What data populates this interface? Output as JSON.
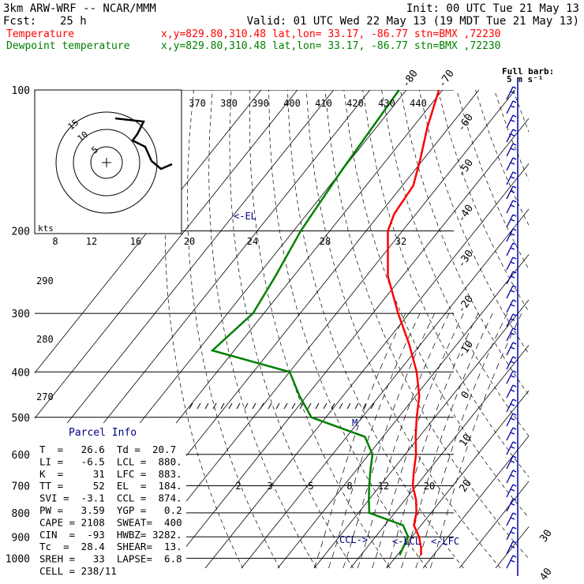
{
  "header": {
    "model": "3km ARW-WRF -- NCAR/MMM",
    "init": "Init: 00 UTC Tue 21 May 13",
    "fcst_label": "Fcst:",
    "fcst_value": "25 h",
    "valid": "Valid: 01 UTC Wed 22 May 13 (19 MDT Tue 21 May 13)",
    "temp_label": "Temperature",
    "dew_label": "Dewpoint temperature",
    "location": "x,y=829.80,310.48   lat,lon= 33.17, -86.77   stn=BMX ,72230",
    "barb_title": "Full barb:",
    "barb_units": "5 m s⁻¹"
  },
  "colors": {
    "temperature": "#ff0000",
    "dewpoint": "#008000",
    "axes": "#000000",
    "parcel_title": "#000080",
    "barbs": "#0000a0"
  },
  "parcel_info": {
    "title": "Parcel Info",
    "rows": [
      "T  =   26.6  Td =  20.7",
      "LI =   -6.5  LCL =  880.",
      "K  =     31  LFC =  883.",
      "TT =     52  EL  =  184.",
      "SVI =  -3.1  CCL =  874.",
      "PW =   3.59  YGP =   0.2",
      "CAPE = 2108  SWEAT=  400",
      "CIN  =  -93  HWBZ= 3282.",
      "Tc  =  28.4  SHEAR=  13.",
      "SREH =   33  LAPSE=  6.8",
      "CELL = 238/11"
    ]
  },
  "chart_data": {
    "type": "line",
    "title": "",
    "ylabel": "",
    "y_scale": "log pressure (hPa)",
    "pressure_levels": [
      100,
      200,
      300,
      400,
      500,
      600,
      700,
      800,
      900,
      1000
    ],
    "isotherm_labels": [
      -80,
      -70,
      -60,
      -50,
      -40,
      -30,
      -20,
      -10,
      0,
      10,
      20,
      30,
      40
    ],
    "theta_labels": [
      370,
      380,
      390,
      400,
      410,
      420,
      430,
      440
    ],
    "theta_low_labels": [
      290,
      280,
      270
    ],
    "mixing_ratio_labels": [
      "2",
      "3",
      "5",
      "8",
      "12",
      "20"
    ],
    "hodograph": {
      "axis_label": "kts",
      "ring_labels": [
        "5",
        "10",
        "15"
      ],
      "speed_labels": [
        "8",
        "12",
        "16",
        "20",
        "24",
        "28",
        "32"
      ]
    },
    "annotations": [
      "<-EL",
      "<-LCL",
      "<-LFC",
      "CCL->",
      "M"
    ],
    "series": [
      {
        "name": "Temperature",
        "points": [
          {
            "p": 100,
            "t": -71
          },
          {
            "p": 120,
            "t": -66
          },
          {
            "p": 140,
            "t": -61
          },
          {
            "p": 160,
            "t": -57
          },
          {
            "p": 184,
            "t": -56
          },
          {
            "p": 200,
            "t": -54
          },
          {
            "p": 250,
            "t": -44
          },
          {
            "p": 300,
            "t": -33
          },
          {
            "p": 350,
            "t": -23
          },
          {
            "p": 400,
            "t": -15
          },
          {
            "p": 450,
            "t": -9
          },
          {
            "p": 500,
            "t": -5
          },
          {
            "p": 550,
            "t": -1
          },
          {
            "p": 600,
            "t": 3
          },
          {
            "p": 650,
            "t": 6
          },
          {
            "p": 700,
            "t": 9
          },
          {
            "p": 750,
            "t": 13
          },
          {
            "p": 800,
            "t": 16
          },
          {
            "p": 850,
            "t": 18
          },
          {
            "p": 900,
            "t": 22
          },
          {
            "p": 950,
            "t": 25
          },
          {
            "p": 985,
            "t": 26.6
          }
        ]
      },
      {
        "name": "Dewpoint temperature",
        "points": [
          {
            "p": 100,
            "t": -82
          },
          {
            "p": 150,
            "t": -80
          },
          {
            "p": 200,
            "t": -78
          },
          {
            "p": 250,
            "t": -75
          },
          {
            "p": 300,
            "t": -73
          },
          {
            "p": 360,
            "t": -76
          },
          {
            "p": 400,
            "t": -50
          },
          {
            "p": 450,
            "t": -42
          },
          {
            "p": 500,
            "t": -34
          },
          {
            "p": 550,
            "t": -15
          },
          {
            "p": 600,
            "t": -9
          },
          {
            "p": 650,
            "t": -6
          },
          {
            "p": 700,
            "t": -3
          },
          {
            "p": 750,
            "t": 0
          },
          {
            "p": 800,
            "t": 3
          },
          {
            "p": 850,
            "t": 15
          },
          {
            "p": 900,
            "t": 19
          },
          {
            "p": 950,
            "t": 20
          },
          {
            "p": 985,
            "t": 20.7
          }
        ]
      }
    ]
  }
}
